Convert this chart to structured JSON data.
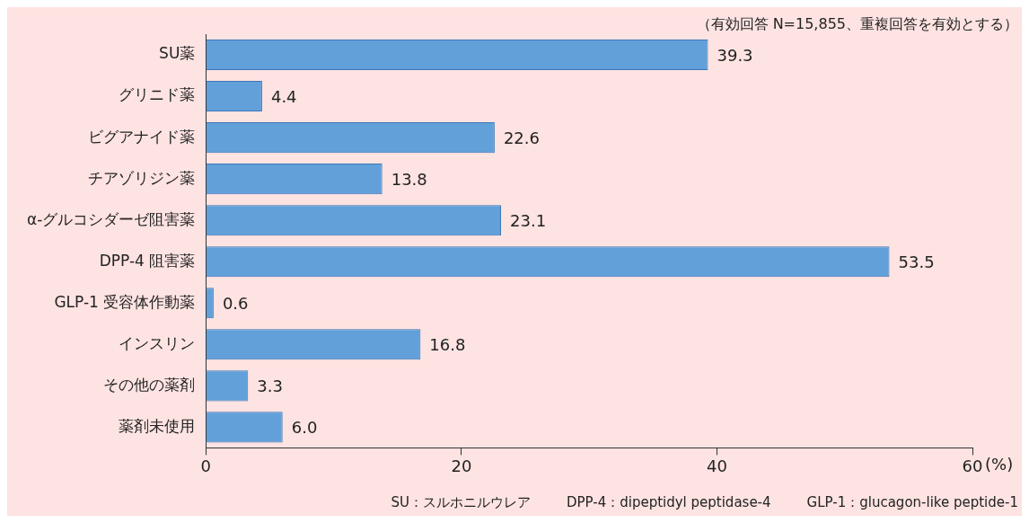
{
  "chart_data": {
    "type": "bar",
    "orientation": "horizontal",
    "categories": [
      "SU薬",
      "グリニド薬",
      "ビグアナイド薬",
      "チアゾリジン薬",
      "α-グルコシダーゼ阻害薬",
      "DPP-4 阻害薬",
      "GLP-1 受容体作動薬",
      "インスリン",
      "その他の薬剤",
      "薬剤未使用"
    ],
    "values": [
      39.3,
      4.4,
      22.6,
      13.8,
      23.1,
      53.5,
      0.6,
      16.8,
      3.3,
      6.0
    ],
    "value_labels": [
      "39.3",
      "4.4",
      "22.6",
      "13.8",
      "23.1",
      "53.5",
      "0.6",
      "16.8",
      "3.3",
      "6.0"
    ],
    "color": "#62a0da",
    "xlim": [
      0,
      60
    ],
    "xticks": [
      0,
      20,
      40,
      60
    ],
    "xlabel": "(%)",
    "grid": false,
    "legend": false,
    "annotations": [
      "（有効回答 N=15,855、重複回答を有効とする）",
      "SU：スルホニルウレア",
      "DPP-4：dipeptidyl peptidase-4",
      "GLP-1：glucagon-like peptide-1"
    ]
  }
}
